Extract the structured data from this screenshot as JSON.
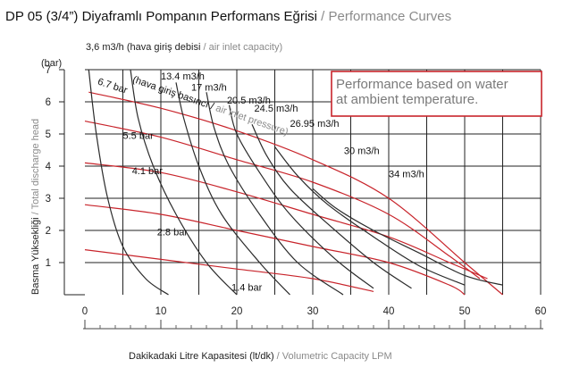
{
  "header": {
    "title_main": "DP 05 (3/4”) Diyaframlı Pompanın Performans Eğrisi",
    "title_sep": " / ",
    "title_en": "Performance Curves"
  },
  "top_label": {
    "main": "3,6 m3/h (hava giriş debisi",
    "sep": " / ",
    "en": "air inlet capacity)"
  },
  "y_unit": "(bar)",
  "y_axis": {
    "main": "Basma Yüksekliği",
    "sep": " / ",
    "en": "Total discharge head"
  },
  "x_axis": {
    "main": "Dakikadaki Litre Kapasitesi (lt/dk)",
    "sep": " / ",
    "en": "Volumetric Capacity LPM"
  },
  "note": {
    "line1": "Performance based on water",
    "line2": "at ambient temperature."
  },
  "curve_labels": {
    "air_pressure": "(hava giriş basıncı / air inlet pressure)"
  },
  "colors": {
    "red": "#c8242b",
    "dark": "#2b2b2b",
    "grid": "#222222",
    "note_border": "#c8242b"
  },
  "chart_data": {
    "type": "line",
    "xlim": [
      0,
      60
    ],
    "ylim": [
      0,
      7
    ],
    "x_ticks": [
      "0",
      "10",
      "20",
      "30",
      "40",
      "50",
      "60"
    ],
    "y_ticks": [
      "1",
      "2",
      "3",
      "4",
      "5",
      "6",
      "7"
    ],
    "grid": true,
    "pressure_curves": [
      {
        "name": "6.7 bar",
        "points": [
          [
            0.5,
            6.3
          ],
          [
            10,
            5.8
          ],
          [
            20,
            5.1
          ],
          [
            30,
            4.2
          ],
          [
            40,
            3.0
          ],
          [
            50,
            1.0
          ],
          [
            55,
            0
          ]
        ]
      },
      {
        "name": "5.5 bar",
        "points": [
          [
            0,
            5.4
          ],
          [
            10,
            4.9
          ],
          [
            20,
            4.2
          ],
          [
            30,
            3.5
          ],
          [
            40,
            2.5
          ],
          [
            48,
            1.2
          ],
          [
            52,
            0.5
          ]
        ]
      },
      {
        "name": "4.1 bar",
        "points": [
          [
            0,
            4.1
          ],
          [
            10,
            3.8
          ],
          [
            20,
            3.2
          ],
          [
            30,
            2.5
          ],
          [
            40,
            1.8
          ],
          [
            48,
            1.0
          ],
          [
            53,
            0.5
          ]
        ]
      },
      {
        "name": "2.8 bar",
        "points": [
          [
            0,
            2.8
          ],
          [
            10,
            2.5
          ],
          [
            20,
            2.0
          ],
          [
            30,
            1.5
          ],
          [
            40,
            1.0
          ],
          [
            48,
            0.3
          ],
          [
            50,
            0
          ]
        ]
      },
      {
        "name": "1.4 bar",
        "points": [
          [
            0,
            1.4
          ],
          [
            10,
            1.1
          ],
          [
            20,
            0.8
          ],
          [
            30,
            0.5
          ],
          [
            38,
            0.1
          ]
        ]
      }
    ],
    "air_capacity_curves": [
      {
        "name": "3,6 m3/h",
        "points": [
          [
            0.5,
            7
          ],
          [
            1.5,
            5
          ],
          [
            3,
            3
          ],
          [
            5,
            1.5
          ],
          [
            8,
            0.5
          ],
          [
            11,
            0
          ]
        ]
      },
      {
        "name": "13.4 m3/h",
        "points": [
          [
            6,
            7
          ],
          [
            7,
            5.5
          ],
          [
            9,
            4
          ],
          [
            12,
            2.5
          ],
          [
            16,
            1
          ],
          [
            20,
            0
          ]
        ]
      },
      {
        "name": "17 m3/h",
        "points": [
          [
            12,
            6.6
          ],
          [
            13,
            5.5
          ],
          [
            15,
            4
          ],
          [
            18,
            2.5
          ],
          [
            23,
            1
          ],
          [
            27,
            0
          ]
        ]
      },
      {
        "name": "20.5 m3/h",
        "points": [
          [
            16,
            6.3
          ],
          [
            17,
            5.2
          ],
          [
            19,
            4
          ],
          [
            23,
            2.5
          ],
          [
            28,
            1
          ],
          [
            34,
            0
          ]
        ]
      },
      {
        "name": "24.5 m3/h",
        "points": [
          [
            19,
            5.9
          ],
          [
            20,
            5
          ],
          [
            23,
            3.8
          ],
          [
            27,
            2.5
          ],
          [
            33,
            1.1
          ],
          [
            38,
            0.2
          ]
        ]
      },
      {
        "name": "26.95 m3/h",
        "points": [
          [
            22,
            5.3
          ],
          [
            24,
            4.3
          ],
          [
            27,
            3.3
          ],
          [
            32,
            2.2
          ],
          [
            38,
            1
          ],
          [
            43,
            0.2
          ]
        ]
      },
      {
        "name": "30 m3/h",
        "points": [
          [
            25,
            4.6
          ],
          [
            28,
            3.7
          ],
          [
            32,
            2.8
          ],
          [
            38,
            1.8
          ],
          [
            44,
            0.9
          ],
          [
            50,
            0.3
          ]
        ]
      },
      {
        "name": "34 m3/h",
        "points": [
          [
            30,
            3.3
          ],
          [
            33,
            2.7
          ],
          [
            38,
            2
          ],
          [
            44,
            1.3
          ],
          [
            50,
            0.6
          ],
          [
            55,
            0.3
          ]
        ]
      }
    ]
  }
}
